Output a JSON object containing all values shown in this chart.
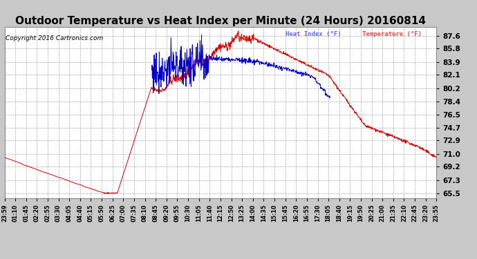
{
  "title": "Outdoor Temperature vs Heat Index per Minute (24 Hours) 20160814",
  "copyright": "Copyright 2016 Cartronics.com",
  "legend_heat": "Heat Index (°F)",
  "legend_temp": "Temperature (°F)",
  "ylabel_right_ticks": [
    65.5,
    67.3,
    69.2,
    71.0,
    72.9,
    74.7,
    76.5,
    78.4,
    80.2,
    82.1,
    83.9,
    85.8,
    87.6
  ],
  "ylim": [
    64.8,
    88.8
  ],
  "bg_color": "#c8c8c8",
  "plot_bg_color": "#ffffff",
  "grid_color": "#aaaaaa",
  "temp_color": "#dd0000",
  "heat_color": "#0000cc",
  "title_fontsize": 11,
  "x_tick_labels": [
    "23:59",
    "01:10",
    "01:45",
    "02:20",
    "02:55",
    "03:30",
    "04:05",
    "04:40",
    "05:15",
    "05:50",
    "06:25",
    "07:00",
    "07:35",
    "08:10",
    "08:45",
    "09:20",
    "09:55",
    "10:30",
    "11:05",
    "11:40",
    "12:15",
    "12:50",
    "13:25",
    "14:00",
    "14:35",
    "15:10",
    "15:45",
    "16:20",
    "16:55",
    "17:30",
    "18:05",
    "18:40",
    "19:15",
    "19:50",
    "20:25",
    "21:00",
    "21:35",
    "22:10",
    "22:45",
    "23:20",
    "23:55"
  ]
}
